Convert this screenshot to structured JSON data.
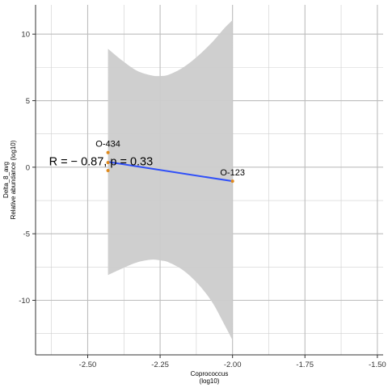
{
  "chart_data": {
    "type": "scatter",
    "xlabel": [
      "Coprococcus",
      "(log10)"
    ],
    "ylabel": [
      "Delta_8_avg",
      "Relative abundance (log10)"
    ],
    "xlim": [
      -2.68,
      -1.48
    ],
    "ylim": [
      -14.1,
      12.2
    ],
    "x_ticks": [
      -2.5,
      -2.25,
      -2.0,
      -1.75,
      -1.5
    ],
    "x_tick_labels": [
      "-2.50",
      "-2.25",
      "-2.00",
      "-1.75",
      "-1.50"
    ],
    "y_ticks": [
      -10,
      -5,
      0,
      5,
      10
    ],
    "y_tick_labels": [
      "-10",
      "-5",
      "0",
      "5",
      "10"
    ],
    "grid": true,
    "points": [
      {
        "x": -2.43,
        "y": 1.1
      },
      {
        "x": -2.43,
        "y": 0.35
      },
      {
        "x": -2.43,
        "y": -0.25
      },
      {
        "x": -2.0,
        "y": -1.05
      }
    ],
    "point_labels": [
      {
        "text": "O-434",
        "x": -2.43,
        "y": 1.1
      },
      {
        "text": "O-123",
        "x": -2.0,
        "y": -1.05
      }
    ],
    "fit_line": {
      "x": [
        -2.43,
        -2.0
      ],
      "y": [
        0.4,
        -1.05
      ]
    },
    "confidence_band": {
      "x": [
        -2.43,
        -2.38,
        -2.33,
        -2.28,
        -2.25,
        -2.22,
        -2.17,
        -2.12,
        -2.07,
        -2.03,
        -2.0
      ],
      "upper": [
        8.9,
        8.0,
        7.25,
        6.9,
        6.85,
        6.95,
        7.5,
        8.35,
        9.4,
        10.4,
        11.05
      ],
      "lower": [
        -8.1,
        -7.6,
        -7.15,
        -6.95,
        -7.0,
        -7.15,
        -7.75,
        -8.75,
        -10.15,
        -11.75,
        -13.0
      ]
    },
    "annotation": {
      "text": "R = − 0.87, p = 0.33",
      "x": -2.55,
      "y": 0.45
    },
    "colors": {
      "points": "#e08a1c",
      "line": "#3050f8",
      "band": "#cccccc",
      "grid": "#cfcfcf",
      "axis": "#333333"
    }
  }
}
